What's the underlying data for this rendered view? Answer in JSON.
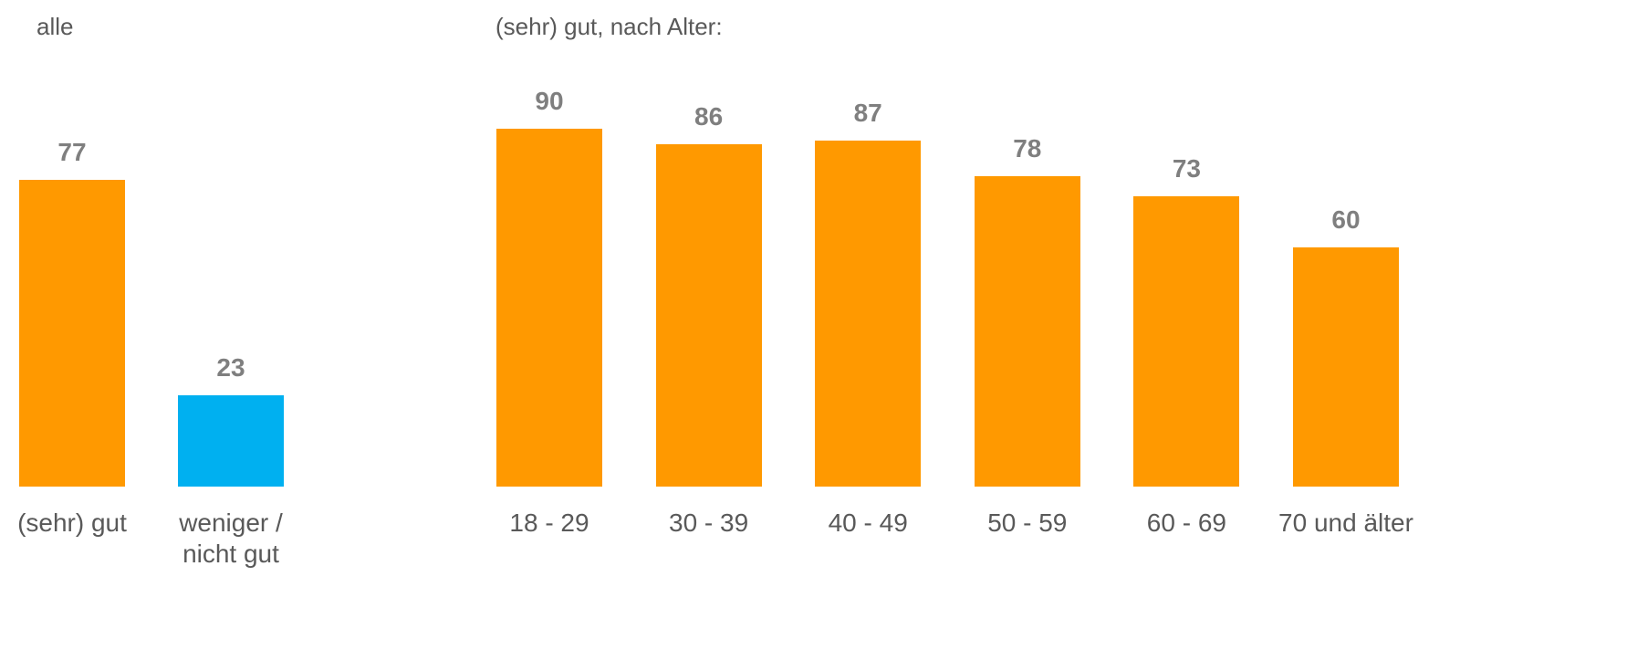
{
  "chart_data": [
    {
      "type": "bar",
      "title": "alle",
      "categories": [
        "(sehr) gut",
        "weniger / nicht gut"
      ],
      "values": [
        77,
        23
      ],
      "colors": [
        "#FF9900",
        "#00B0F0"
      ],
      "ylim": [
        0,
        100
      ]
    },
    {
      "type": "bar",
      "title": "(sehr) gut, nach Alter:",
      "categories": [
        "18 - 29",
        "30 - 39",
        "40 - 49",
        "50 - 59",
        "60 - 69",
        "70 und älter"
      ],
      "values": [
        90,
        86,
        87,
        78,
        73,
        60
      ],
      "colors": [
        "#FF9900",
        "#FF9900",
        "#FF9900",
        "#FF9900",
        "#FF9900",
        "#FF9900"
      ],
      "ylim": [
        0,
        100
      ]
    }
  ]
}
